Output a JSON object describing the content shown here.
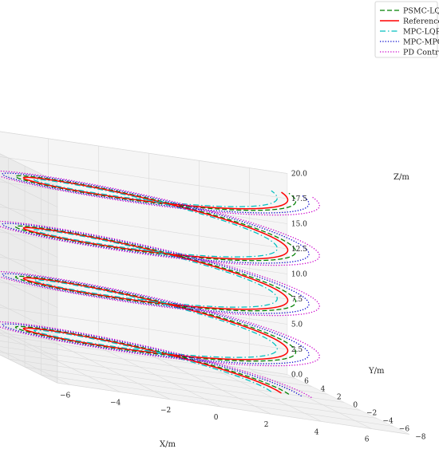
{
  "chart_data": {
    "type": "line",
    "subtype": "3d-helix-trajectory",
    "title": "",
    "xlabel": "X/m",
    "ylabel": "Y/m",
    "zlabel": "Z/m",
    "xlim": [
      -6.5,
      7.5
    ],
    "ylim": [
      -8,
      7
    ],
    "zlim": [
      0,
      20
    ],
    "xticks": [
      "−6",
      "−4",
      "−2",
      "0",
      "2",
      "4",
      "6"
    ],
    "yticks": [
      "6",
      "4",
      "2",
      "0",
      "−2",
      "−4",
      "−6",
      "−8"
    ],
    "zticks": [
      "0.0",
      "2.5",
      "5.0",
      "7.5",
      "10.0",
      "12.5",
      "15.0",
      "17.5",
      "20.0"
    ],
    "grid": true,
    "legend_position": "top-right",
    "reference_helix": {
      "radius": 5,
      "turns": 4,
      "z_start": 0,
      "z_end": 20
    },
    "series": [
      {
        "name": "PSMC-LQR",
        "color": "#008000",
        "style": "dashed",
        "radius": 5.3,
        "turns": 4
      },
      {
        "name": "Reference",
        "color": "#ff0000",
        "style": "solid",
        "radius": 5.0,
        "turns": 4
      },
      {
        "name": "MPC-LQR",
        "color": "#00bfbf",
        "style": "dashdot",
        "radius": 4.6,
        "turns": 4
      },
      {
        "name": "MPC-MPC",
        "color": "#0000cc",
        "style": "dotted",
        "radius": 5.8,
        "turns": 4
      },
      {
        "name": "PD Control",
        "color": "#cc00cc",
        "style": "dotted",
        "radius": 6.2,
        "turns": 4
      }
    ]
  }
}
